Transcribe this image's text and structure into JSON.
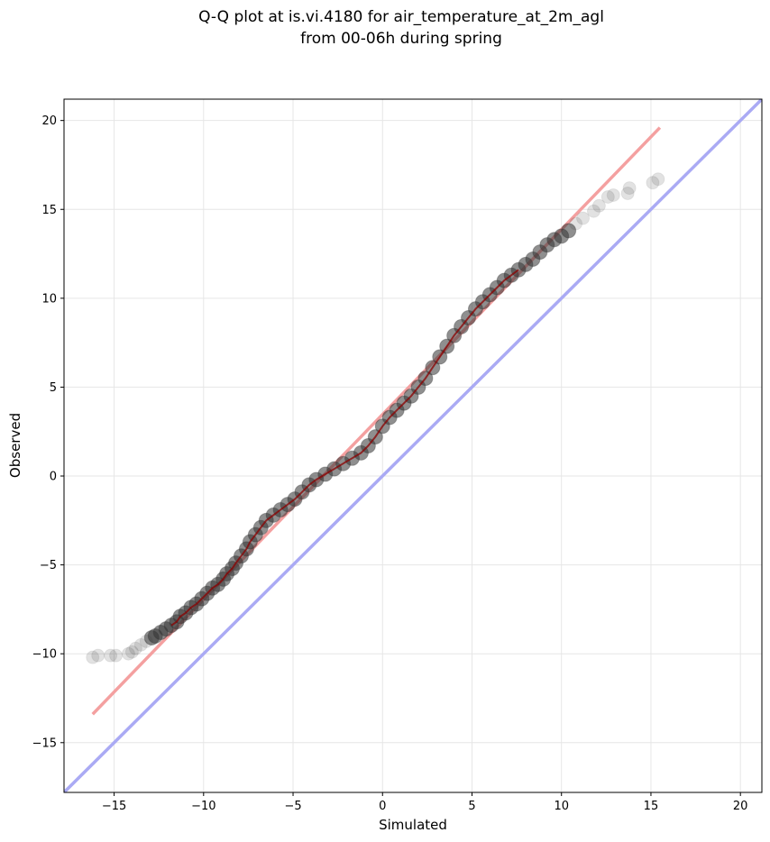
{
  "chart_data": {
    "type": "scatter",
    "title": [
      "Q-Q plot at is.vi.4180 for air_temperature_at_2m_agl",
      "from 00-06h during spring"
    ],
    "xlabel": "Simulated",
    "ylabel": "Observed",
    "xlim": [
      -17.8,
      21.2
    ],
    "ylim": [
      -17.8,
      21.2
    ],
    "xticks": [
      -15,
      -10,
      -5,
      0,
      5,
      10,
      15,
      20
    ],
    "yticks": [
      -15,
      -10,
      -5,
      0,
      5,
      10,
      15,
      20
    ],
    "xtick_labels": [
      "−15",
      "−10",
      "−5",
      "0",
      "5",
      "10",
      "15",
      "20"
    ],
    "ytick_labels": [
      "−15",
      "−10",
      "−5",
      "0",
      "5",
      "10",
      "15",
      "20"
    ],
    "grid": true,
    "colors": {
      "points": "#333333",
      "fit_line": "#f4a0a0",
      "identity_line": "#aaaaf4",
      "grid": "#e6e6e6",
      "trend": "#8b0000"
    },
    "series": [
      {
        "points": [
          [
            -16.2,
            -10.2
          ],
          [
            -15.9,
            -10.1
          ],
          [
            -15.2,
            -10.1
          ],
          [
            -14.9,
            -10.1
          ],
          [
            -14.2,
            -10.0
          ],
          [
            -14.0,
            -9.9
          ],
          [
            -13.8,
            -9.7
          ],
          [
            -13.5,
            -9.5
          ],
          [
            -13.2,
            -9.3
          ],
          [
            -12.9,
            -9.1
          ],
          [
            -12.7,
            -9.0
          ],
          [
            -12.4,
            -8.8
          ],
          [
            -12.1,
            -8.6
          ],
          [
            -11.8,
            -8.4
          ],
          [
            -11.5,
            -8.2
          ],
          [
            -11.3,
            -7.9
          ],
          [
            -11.0,
            -7.7
          ],
          [
            -10.7,
            -7.4
          ],
          [
            -10.4,
            -7.2
          ],
          [
            -10.1,
            -6.9
          ],
          [
            -9.8,
            -6.6
          ],
          [
            -9.5,
            -6.3
          ],
          [
            -9.2,
            -6.1
          ],
          [
            -8.9,
            -5.8
          ],
          [
            -8.7,
            -5.5
          ],
          [
            -8.4,
            -5.2
          ],
          [
            -8.2,
            -4.9
          ],
          [
            -7.9,
            -4.5
          ],
          [
            -7.6,
            -4.1
          ],
          [
            -7.4,
            -3.7
          ],
          [
            -7.1,
            -3.3
          ],
          [
            -6.8,
            -2.9
          ],
          [
            -6.5,
            -2.5
          ],
          [
            -6.1,
            -2.2
          ],
          [
            -5.7,
            -1.9
          ],
          [
            -5.3,
            -1.6
          ],
          [
            -4.9,
            -1.3
          ],
          [
            -4.5,
            -0.9
          ],
          [
            -4.1,
            -0.5
          ],
          [
            -3.7,
            -0.2
          ],
          [
            -3.2,
            0.1
          ],
          [
            -2.7,
            0.4
          ],
          [
            -2.2,
            0.7
          ],
          [
            -1.7,
            1.0
          ],
          [
            -1.2,
            1.3
          ],
          [
            -0.8,
            1.7
          ],
          [
            -0.4,
            2.2
          ],
          [
            0.0,
            2.8
          ],
          [
            0.4,
            3.3
          ],
          [
            0.8,
            3.7
          ],
          [
            1.2,
            4.1
          ],
          [
            1.6,
            4.5
          ],
          [
            2.0,
            5.0
          ],
          [
            2.4,
            5.5
          ],
          [
            2.8,
            6.1
          ],
          [
            3.2,
            6.7
          ],
          [
            3.6,
            7.3
          ],
          [
            4.0,
            7.9
          ],
          [
            4.4,
            8.4
          ],
          [
            4.8,
            8.9
          ],
          [
            5.2,
            9.4
          ],
          [
            5.6,
            9.8
          ],
          [
            6.0,
            10.2
          ],
          [
            6.4,
            10.6
          ],
          [
            6.8,
            11.0
          ],
          [
            7.2,
            11.3
          ],
          [
            7.6,
            11.6
          ],
          [
            8.0,
            11.9
          ],
          [
            8.4,
            12.2
          ],
          [
            8.8,
            12.6
          ],
          [
            9.2,
            13.0
          ],
          [
            9.6,
            13.3
          ],
          [
            10.0,
            13.5
          ],
          [
            10.4,
            13.8
          ],
          [
            10.8,
            14.2
          ],
          [
            11.2,
            14.5
          ],
          [
            11.8,
            14.9
          ],
          [
            12.1,
            15.2
          ],
          [
            12.6,
            15.7
          ],
          [
            12.9,
            15.8
          ],
          [
            13.7,
            15.9
          ],
          [
            13.8,
            16.2
          ],
          [
            15.1,
            16.5
          ],
          [
            15.4,
            16.7
          ]
        ]
      },
      {
        "type": "line",
        "points": [
          [
            -16.2,
            -13.4
          ],
          [
            15.5,
            19.6
          ]
        ]
      },
      {
        "type": "line",
        "points": [
          [
            -17.8,
            -17.8
          ],
          [
            21.2,
            21.2
          ]
        ]
      }
    ]
  }
}
